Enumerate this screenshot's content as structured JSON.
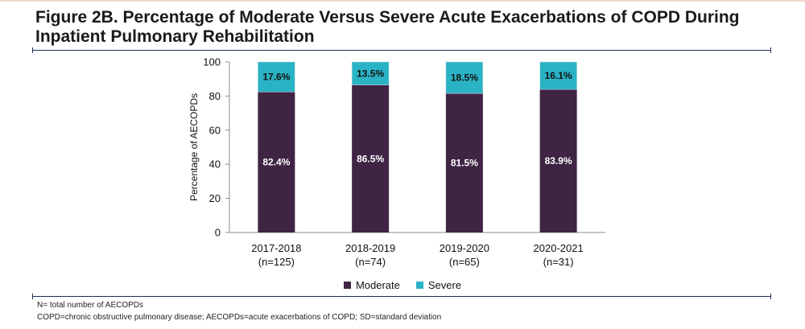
{
  "figure": {
    "title": "Figure 2B. Percentage of Moderate Versus Severe Acute Exacerbations of COPD During Inpatient Pulmonary Rehabilitation"
  },
  "footnotes": [
    "N= total number of AECOPDs",
    "COPD=chronic obstructive pulmonary disease; AECOPDs=acute exacerbations of COPD; SD=standard deviation"
  ],
  "colors": {
    "moderate": "#3f2444",
    "severe": "#2ab3c5",
    "rule": "#1f2d5a"
  },
  "chart_data": {
    "type": "bar",
    "stacked": true,
    "title": "",
    "xlabel": "",
    "ylabel": "Percentage of AECOPDs",
    "ylim": [
      0,
      100
    ],
    "yticks": [
      0,
      20,
      40,
      60,
      80,
      100
    ],
    "categories": [
      [
        "2017-2018",
        "(n=125)"
      ],
      [
        "2018-2019",
        "(n=74)"
      ],
      [
        "2019-2020",
        "(n=65)"
      ],
      [
        "2020-2021",
        "(n=31)"
      ]
    ],
    "series": [
      {
        "name": "Moderate",
        "values": [
          82.4,
          86.5,
          81.5,
          83.9
        ],
        "labels": [
          "82.4%",
          "86.5%",
          "81.5%",
          "83.9%"
        ]
      },
      {
        "name": "Severe",
        "values": [
          17.6,
          13.5,
          18.5,
          16.1
        ],
        "labels": [
          "17.6%",
          "13.5%",
          "18.5%",
          "16.1%"
        ]
      }
    ],
    "legend_position": "bottom",
    "grid": false
  }
}
